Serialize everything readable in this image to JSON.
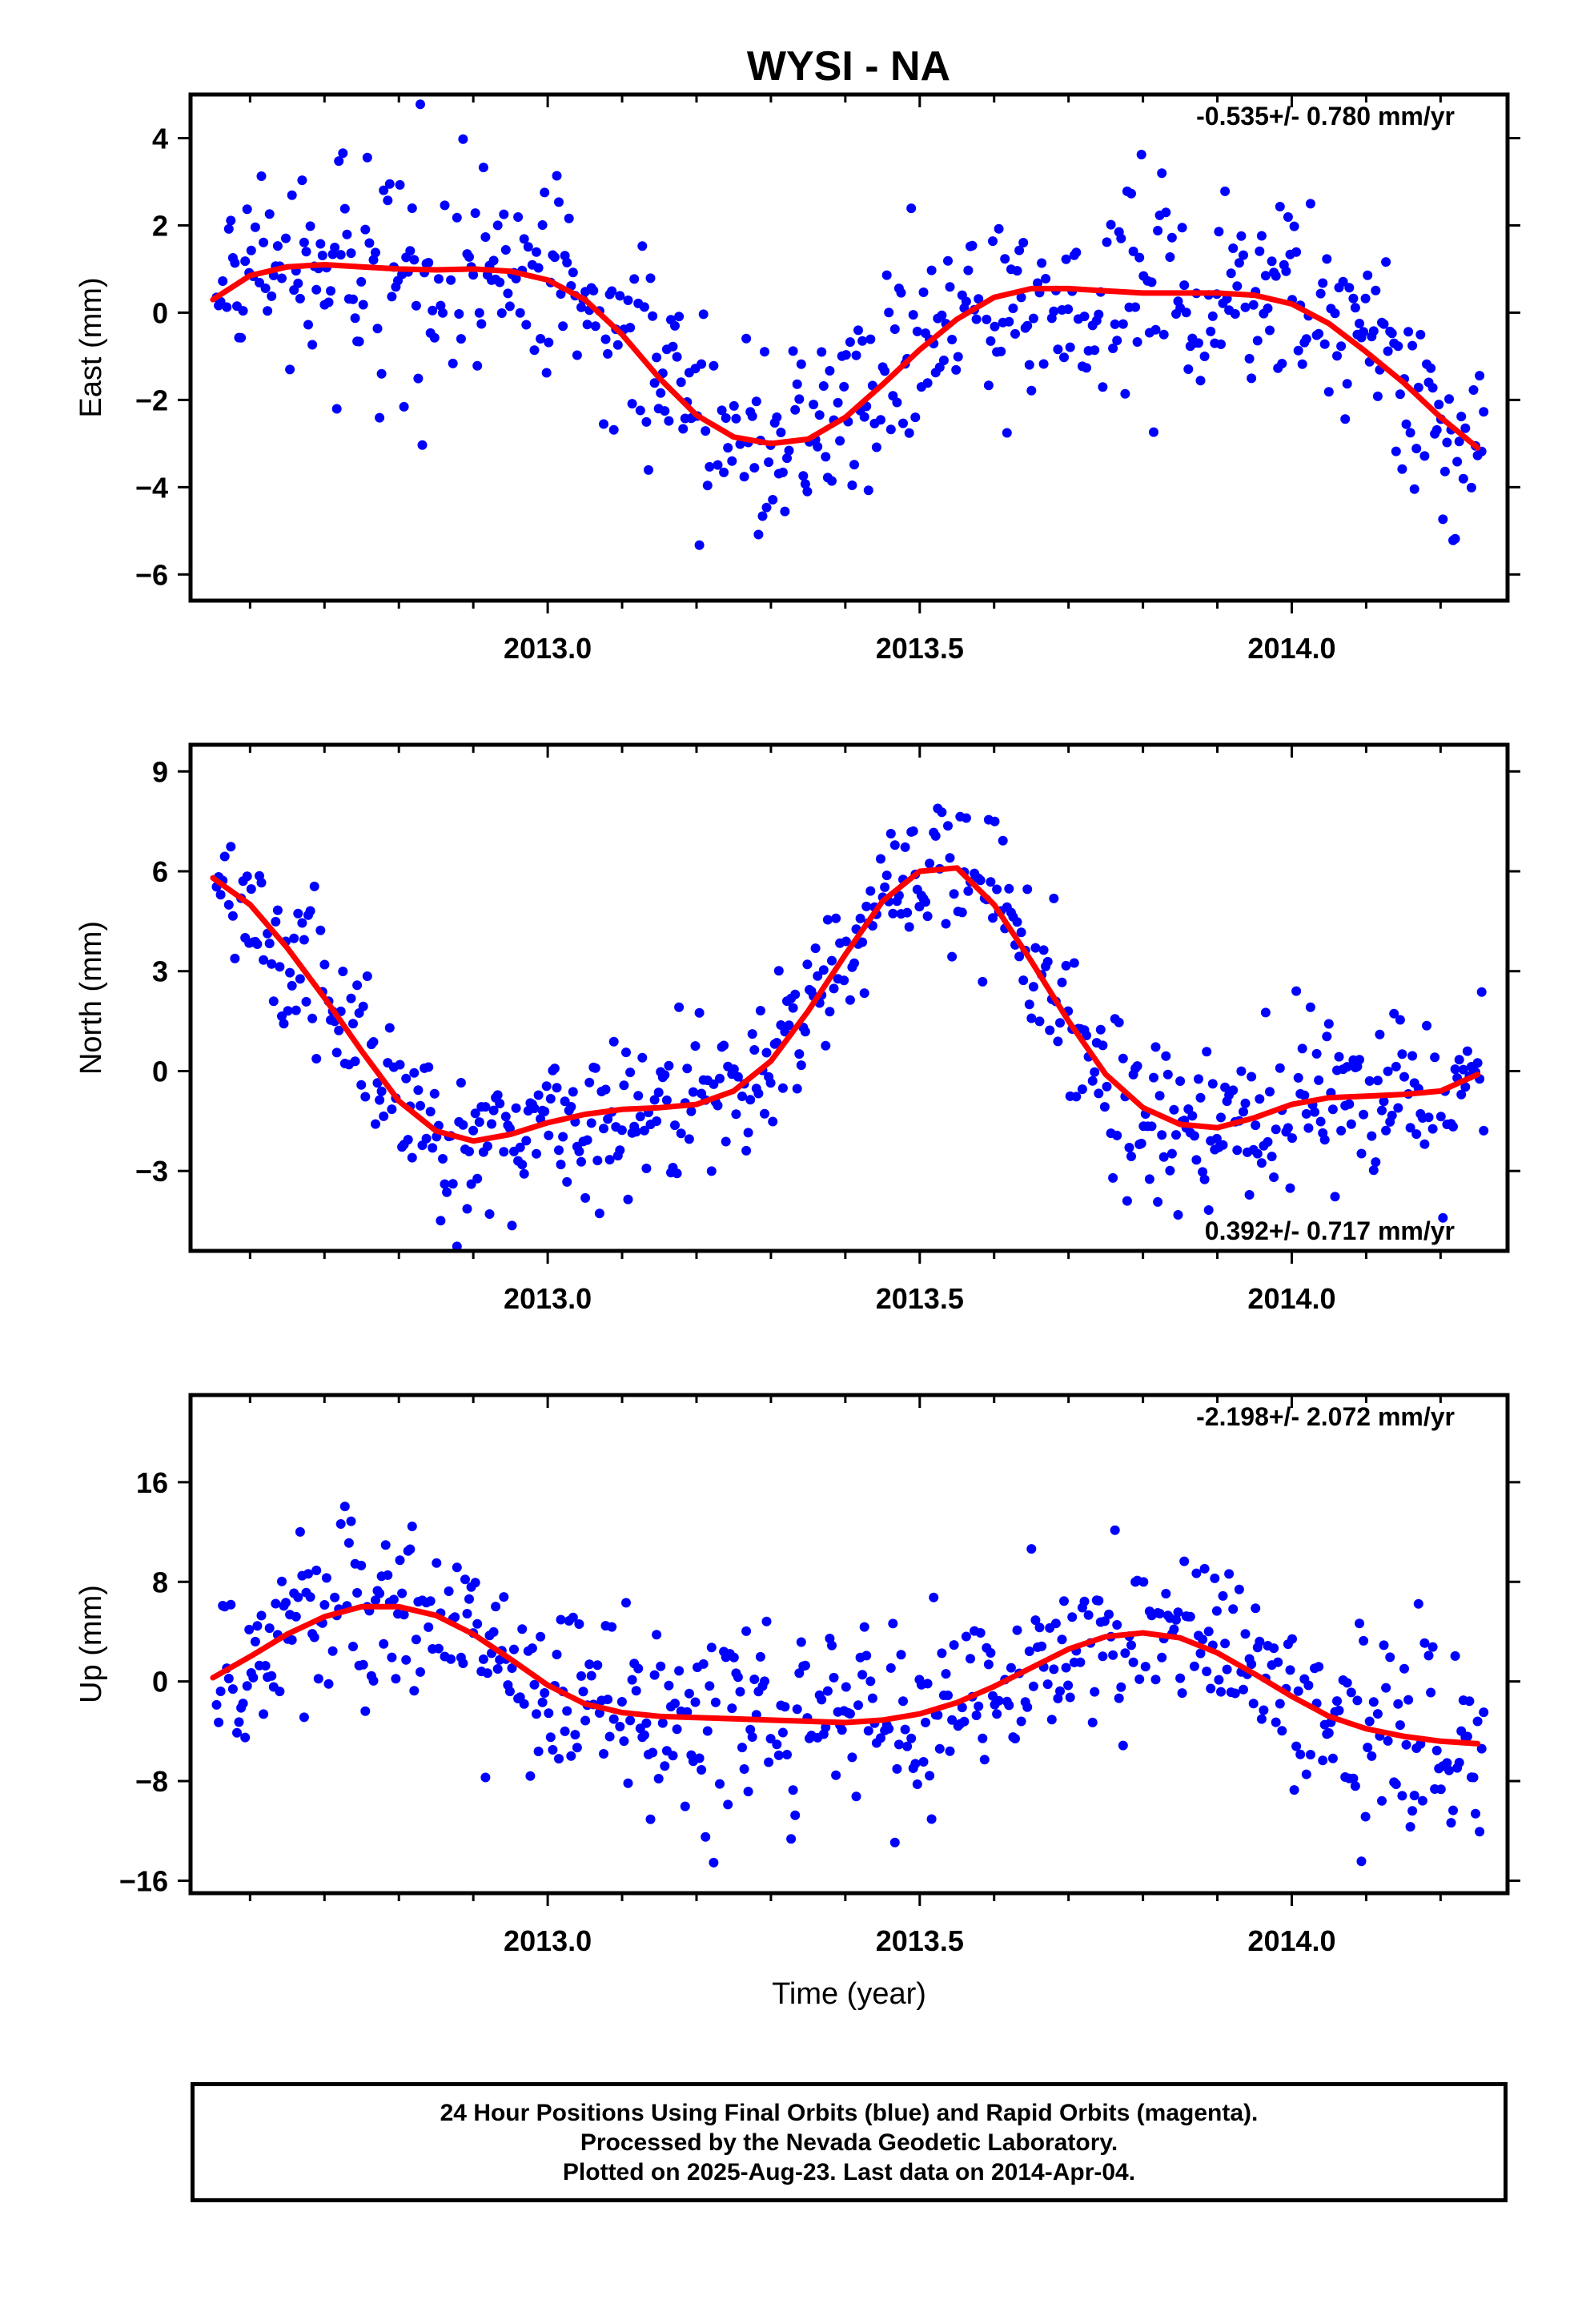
{
  "title": "WYSI - NA",
  "footer": {
    "line1": "24 Hour Positions Using Final Orbits (blue) and Rapid Orbits (magenta).",
    "line2": "Processed by the Nevada Geodetic Laboratory.",
    "line3": "Plotted on 2025-Aug-23. Last data on 2014-Apr-04."
  },
  "colors": {
    "points": "#0000ff",
    "fit": "#ff0000",
    "frame": "#000000"
  },
  "chart_data": [
    {
      "type": "scatter",
      "ylabel": "East (mm)",
      "xlabel": "",
      "rate": "-0.535+/- 0.780 mm/yr",
      "rate_position": "top-right",
      "xlim": [
        2012.52,
        2014.29
      ],
      "ylim": [
        -6.6,
        5
      ],
      "xticks": [
        "2013.0",
        "2013.5",
        "2014.0"
      ],
      "xtick_values": [
        2013.0,
        2013.5,
        2014.0
      ],
      "yticks": [
        -6,
        -4,
        -2,
        0,
        2,
        4
      ],
      "fit": {
        "x": [
          2012.55,
          2012.6,
          2012.65,
          2012.7,
          2012.75,
          2012.8,
          2012.85,
          2012.9,
          2012.95,
          2013.0,
          2013.05,
          2013.1,
          2013.15,
          2013.2,
          2013.25,
          2013.3,
          2013.35,
          2013.4,
          2013.45,
          2013.5,
          2013.55,
          2013.6,
          2013.65,
          2013.7,
          2013.75,
          2013.8,
          2013.85,
          2013.9,
          2013.95,
          2014.0,
          2014.05,
          2014.1,
          2014.15,
          2014.2,
          2014.25
        ],
        "y": [
          0.3,
          0.85,
          1.05,
          1.1,
          1.05,
          1.0,
          0.98,
          1.0,
          0.95,
          0.75,
          0.3,
          -0.5,
          -1.5,
          -2.35,
          -2.85,
          -3.0,
          -2.9,
          -2.4,
          -1.65,
          -0.85,
          -0.15,
          0.35,
          0.55,
          0.55,
          0.5,
          0.45,
          0.45,
          0.45,
          0.4,
          0.2,
          -0.25,
          -0.9,
          -1.6,
          -2.4,
          -3.1
        ]
      },
      "noise": 1.15
    },
    {
      "type": "scatter",
      "ylabel": "North (mm)",
      "xlabel": "",
      "rate": "0.392+/- 0.717 mm/yr",
      "rate_position": "bottom-right",
      "xlim": [
        2012.52,
        2014.29
      ],
      "ylim": [
        -5.4,
        9.8
      ],
      "xticks": [
        "2013.0",
        "2013.5",
        "2014.0"
      ],
      "xtick_values": [
        2013.0,
        2013.5,
        2014.0
      ],
      "yticks": [
        -3,
        0,
        3,
        6,
        9
      ],
      "fit": {
        "x": [
          2012.55,
          2012.6,
          2012.65,
          2012.7,
          2012.75,
          2012.8,
          2012.85,
          2012.9,
          2012.95,
          2013.0,
          2013.05,
          2013.1,
          2013.15,
          2013.2,
          2013.25,
          2013.3,
          2013.35,
          2013.4,
          2013.45,
          2013.5,
          2013.55,
          2013.6,
          2013.65,
          2013.7,
          2013.75,
          2013.8,
          2013.85,
          2013.9,
          2013.95,
          2014.0,
          2014.05,
          2014.1,
          2014.15,
          2014.2,
          2014.25
        ],
        "y": [
          5.8,
          5.0,
          3.7,
          2.2,
          0.6,
          -0.9,
          -1.8,
          -2.1,
          -1.9,
          -1.55,
          -1.3,
          -1.15,
          -1.1,
          -1.0,
          -0.6,
          0.3,
          1.8,
          3.5,
          5.1,
          6.0,
          6.1,
          5.0,
          3.3,
          1.5,
          -0.1,
          -1.1,
          -1.6,
          -1.7,
          -1.4,
          -1.0,
          -0.8,
          -0.75,
          -0.7,
          -0.6,
          -0.1
        ]
      },
      "noise": 1.2
    },
    {
      "type": "scatter",
      "ylabel": "Up (mm)",
      "xlabel": "Time (year)",
      "rate": "-2.198+/- 2.072 mm/yr",
      "rate_position": "top-right",
      "xlim": [
        2012.52,
        2014.29
      ],
      "ylim": [
        -17,
        23
      ],
      "xticks": [
        "2013.0",
        "2013.5",
        "2014.0"
      ],
      "xtick_values": [
        2013.0,
        2013.5,
        2014.0
      ],
      "yticks": [
        -16,
        -8,
        0,
        8,
        16
      ],
      "fit": {
        "x": [
          2012.55,
          2012.6,
          2012.65,
          2012.7,
          2012.75,
          2012.8,
          2012.85,
          2012.9,
          2012.95,
          2013.0,
          2013.05,
          2013.1,
          2013.15,
          2013.2,
          2013.25,
          2013.3,
          2013.35,
          2013.4,
          2013.45,
          2013.5,
          2013.55,
          2013.6,
          2013.65,
          2013.7,
          2013.75,
          2013.8,
          2013.85,
          2013.9,
          2013.95,
          2014.0,
          2014.05,
          2014.1,
          2014.15,
          2014.2,
          2014.25
        ],
        "y": [
          0.3,
          2.0,
          3.8,
          5.2,
          6.0,
          6.0,
          5.3,
          3.8,
          1.8,
          -0.3,
          -1.8,
          -2.5,
          -2.8,
          -2.9,
          -3.0,
          -3.1,
          -3.2,
          -3.3,
          -3.1,
          -2.6,
          -1.7,
          -0.4,
          1.1,
          2.6,
          3.6,
          3.9,
          3.5,
          2.3,
          0.6,
          -1.2,
          -2.8,
          -3.8,
          -4.4,
          -4.8,
          -5.0
        ]
      },
      "noise": 3.8
    }
  ]
}
